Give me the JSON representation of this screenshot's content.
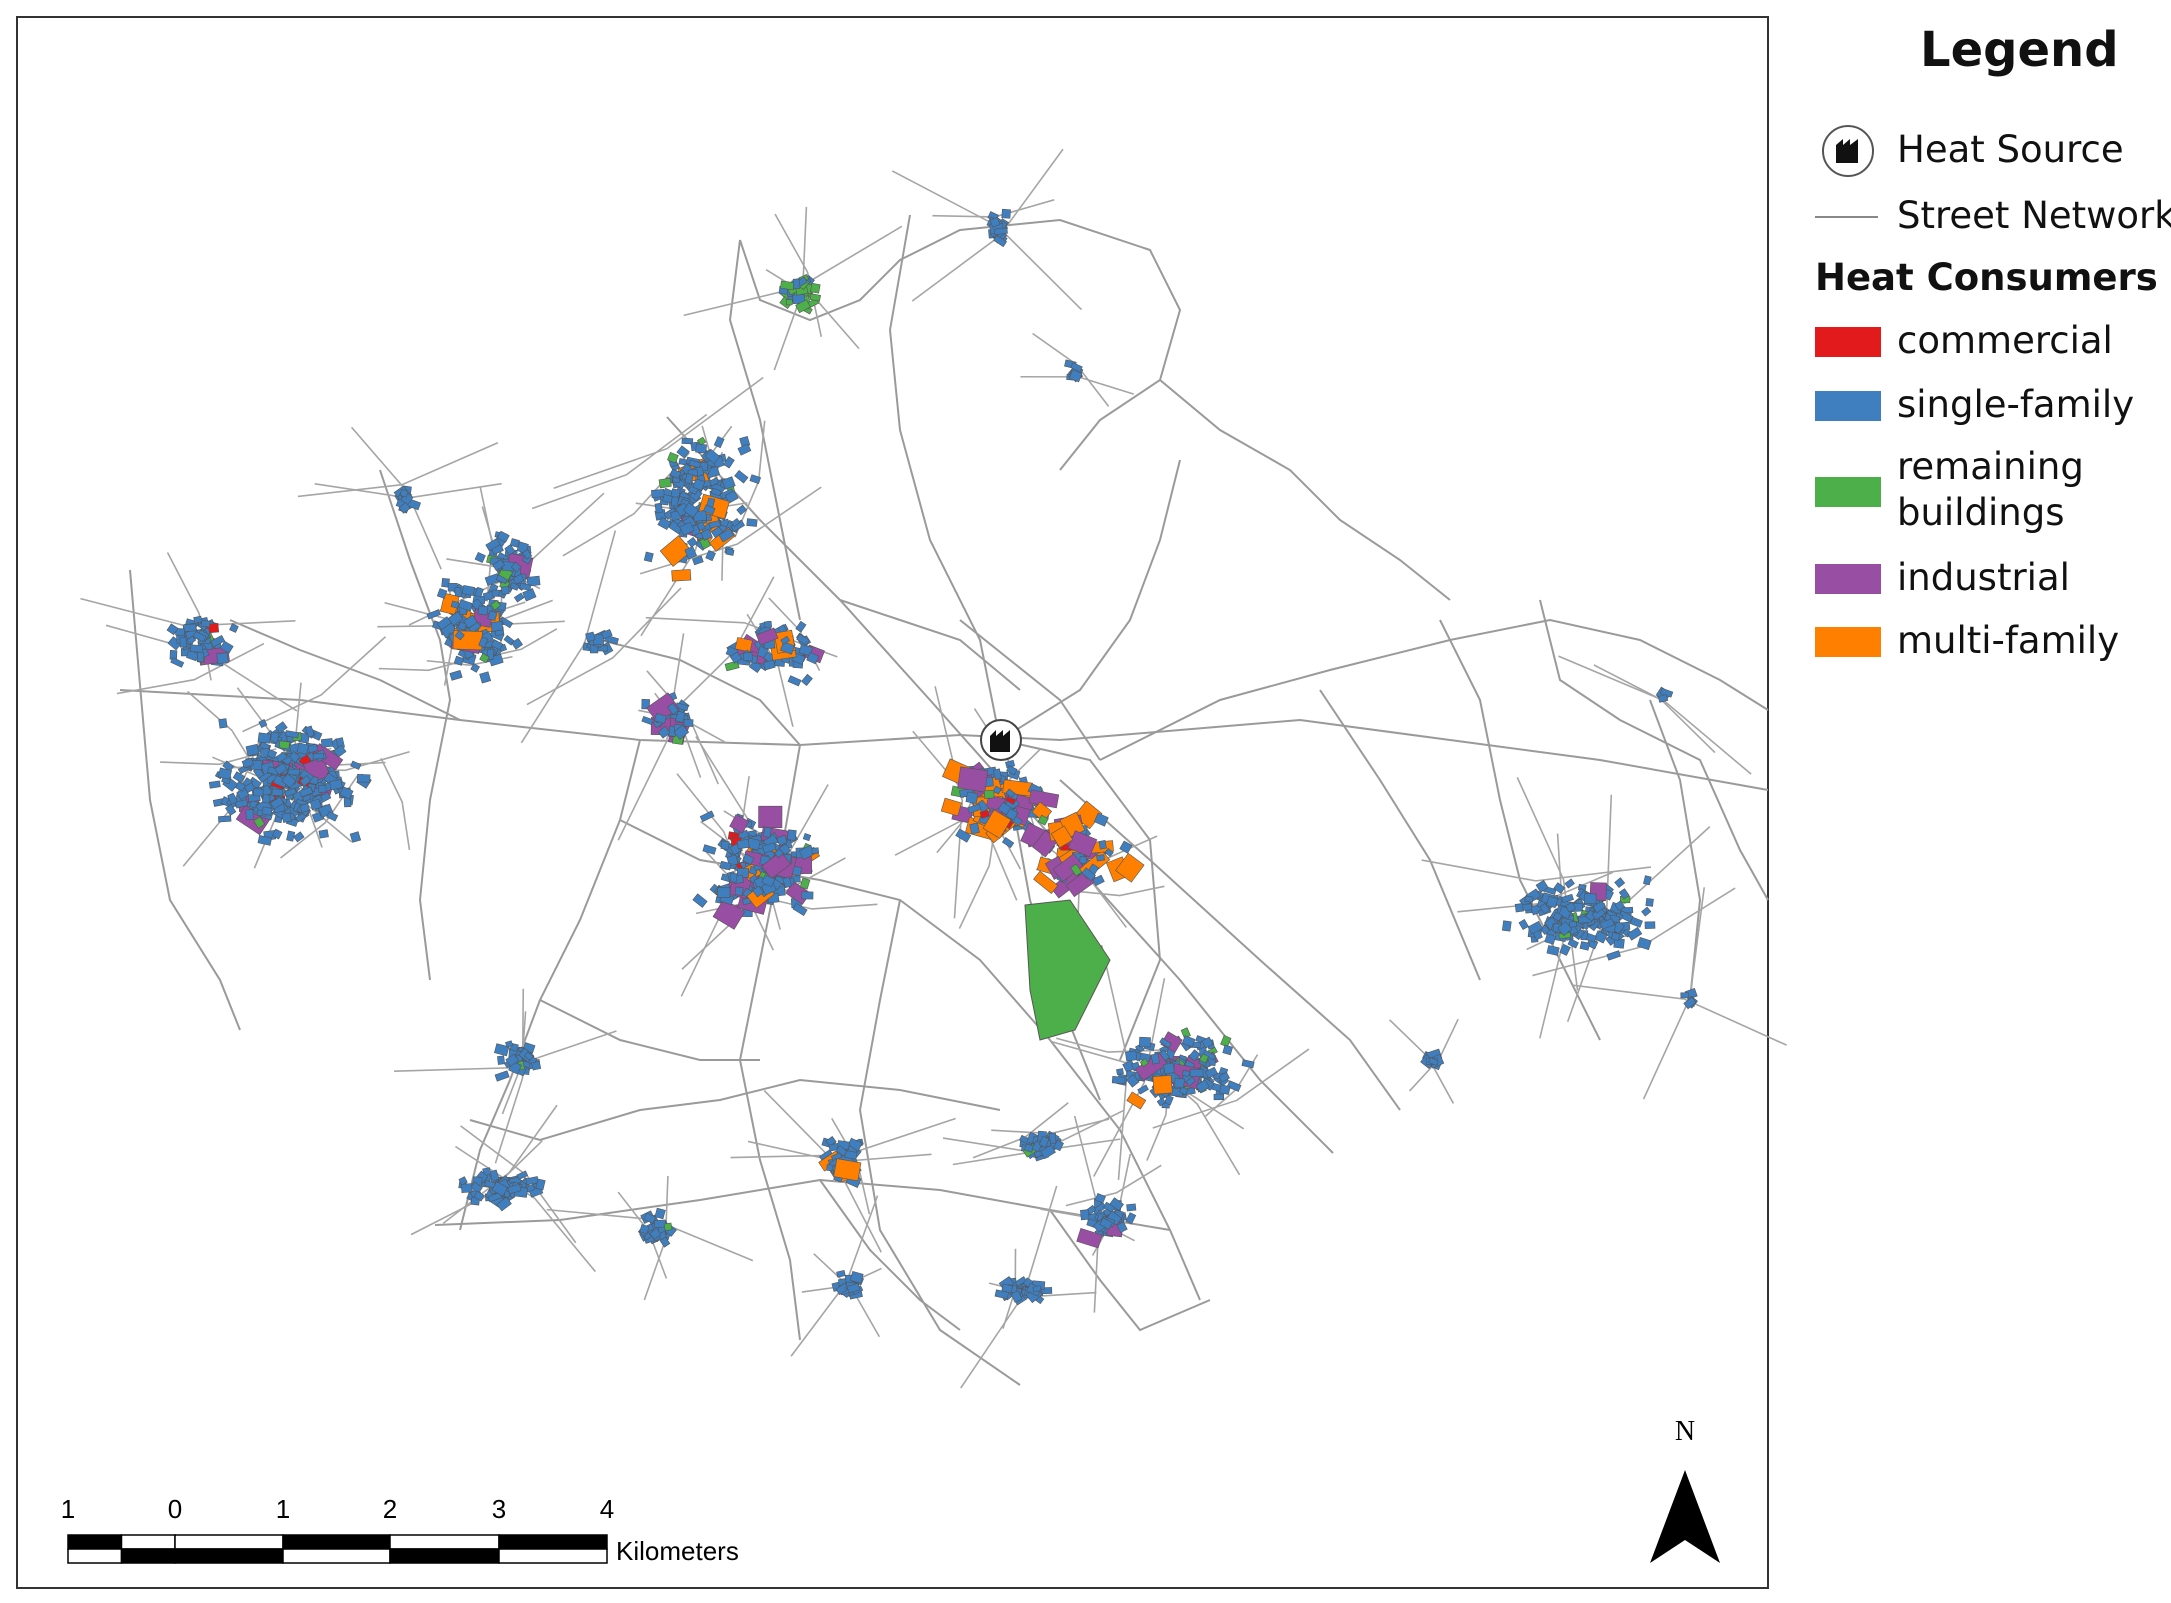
{
  "legend": {
    "title": "Legend",
    "heat_source": "Heat Source",
    "street_network": "Street Network",
    "group_title": "Heat Consumers",
    "items": [
      {
        "label": "commercial",
        "color": "#e31a1c"
      },
      {
        "label": "single-family",
        "color": "#3f7fbf"
      },
      {
        "label": "remaining buildings",
        "color": "#4daf4a"
      },
      {
        "label": "industrial",
        "color": "#984ea3"
      },
      {
        "label": "multi-family",
        "color": "#ff7f00"
      }
    ]
  },
  "scale_bar": {
    "labels": [
      "1",
      "0",
      "1",
      "2",
      "3",
      "4"
    ],
    "unit": "Kilometers"
  },
  "north_arrow": "N"
}
